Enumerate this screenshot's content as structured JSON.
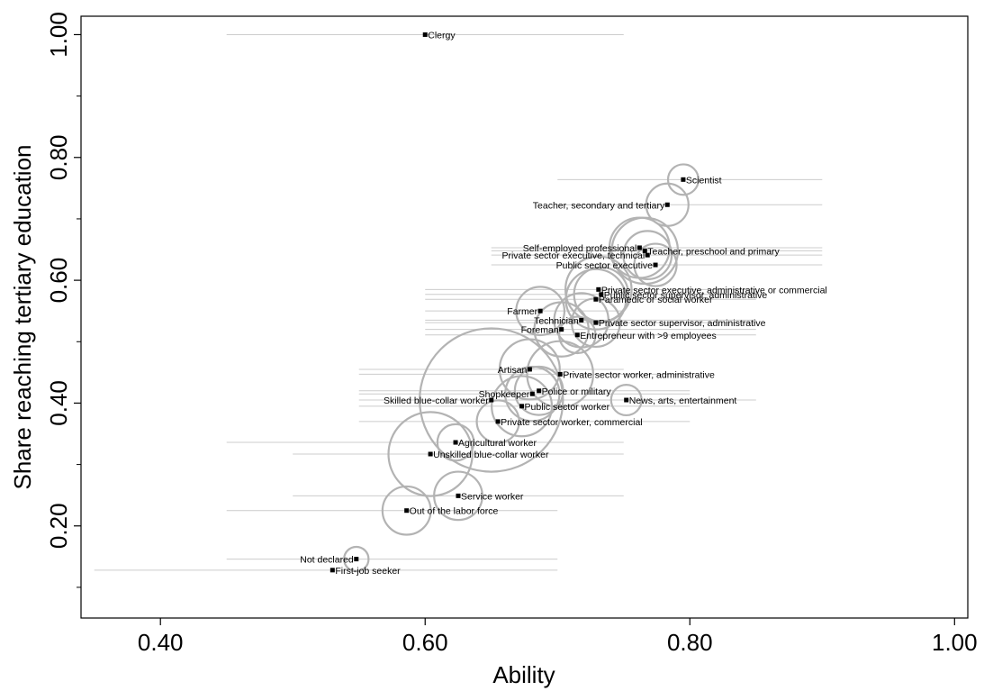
{
  "chart_data": {
    "type": "scatter",
    "title": "",
    "xlabel": "Ability",
    "ylabel": "Share reaching tertiary education",
    "xlim": [
      0.34,
      1.01
    ],
    "ylim": [
      0.05,
      1.03
    ],
    "x_ticks": [
      0.4,
      0.6,
      0.8,
      1.0
    ],
    "x_tick_labels": [
      "0.40",
      "0.60",
      "0.80",
      "1.00"
    ],
    "y_ticks": [
      0.2,
      0.4,
      0.6,
      0.8,
      1.0
    ],
    "y_tick_labels": [
      "0.20",
      "0.40",
      "0.60",
      "0.80",
      "1.00"
    ],
    "y_minor_ticks": [
      0.1,
      0.3,
      0.5,
      0.7,
      0.9
    ],
    "grid": false,
    "legend": "none",
    "colors": {
      "point": "#000000",
      "bubble": "#b3b3b3",
      "range_line": "#cccccc"
    },
    "points": [
      {
        "label": "Clergy",
        "x": 0.6,
        "y": 1.0,
        "range": [
          0.45,
          0.75
        ],
        "size": 0.0
      },
      {
        "label": "Scientist",
        "x": 0.795,
        "y": 0.764,
        "range": [
          0.7,
          0.9
        ],
        "size": 0.3
      },
      {
        "label": "Teacher, secondary and tertiary",
        "x": 0.783,
        "y": 0.723,
        "range": [
          0.7,
          0.9
        ],
        "size": 0.5
      },
      {
        "label": "Self-employed professional",
        "x": 0.762,
        "y": 0.653,
        "range": [
          0.65,
          0.9
        ],
        "size": 0.8
      },
      {
        "label": "Teacher, preschool and primary",
        "x": 0.766,
        "y": 0.648,
        "range": [
          0.65,
          0.9
        ],
        "size": 0.9
      },
      {
        "label": "Private sector executive, technical",
        "x": 0.768,
        "y": 0.641,
        "range": [
          0.65,
          0.9
        ],
        "size": 0.6
      },
      {
        "label": "Public sector executive",
        "x": 0.774,
        "y": 0.625,
        "range": [
          0.65,
          0.9
        ],
        "size": 0.5
      },
      {
        "label": "Private sector executive, administrative or commercial",
        "x": 0.731,
        "y": 0.585,
        "range": [
          0.6,
          0.85
        ],
        "size": 0.9
      },
      {
        "label": "Public sector supervisor, administrative",
        "x": 0.733,
        "y": 0.577,
        "range": [
          0.6,
          0.85
        ],
        "size": 0.7
      },
      {
        "label": "Paramedic or social worker",
        "x": 0.729,
        "y": 0.569,
        "range": [
          0.6,
          0.85
        ],
        "size": 0.8
      },
      {
        "label": "Farmer",
        "x": 0.687,
        "y": 0.55,
        "range": [
          0.6,
          0.75
        ],
        "size": 0.6
      },
      {
        "label": "Technician",
        "x": 0.718,
        "y": 0.535,
        "range": [
          0.6,
          0.85
        ],
        "size": 0.7
      },
      {
        "label": "Private sector supervisor, administrative",
        "x": 0.729,
        "y": 0.531,
        "range": [
          0.6,
          0.85
        ],
        "size": 0.6
      },
      {
        "label": "Foreman",
        "x": 0.703,
        "y": 0.52,
        "range": [
          0.6,
          0.85
        ],
        "size": 0.7
      },
      {
        "label": "Entrepreneur with >9 employees",
        "x": 0.715,
        "y": 0.511,
        "range": [
          0.6,
          0.85
        ],
        "size": 0.4
      },
      {
        "label": "Artisan",
        "x": 0.679,
        "y": 0.455,
        "range": [
          0.55,
          0.75
        ],
        "size": 0.8
      },
      {
        "label": "Private sector worker, administrative",
        "x": 0.702,
        "y": 0.447,
        "range": [
          0.55,
          0.8
        ],
        "size": 0.9
      },
      {
        "label": "Shopkeeper",
        "x": 0.681,
        "y": 0.415,
        "range": [
          0.55,
          0.8
        ],
        "size": 0.7
      },
      {
        "label": "Police or military",
        "x": 0.686,
        "y": 0.42,
        "range": [
          0.55,
          0.8
        ],
        "size": 0.6
      },
      {
        "label": "News, arts, entertainment",
        "x": 0.752,
        "y": 0.405,
        "range": [
          0.65,
          0.85
        ],
        "size": 0.3
      },
      {
        "label": "Skilled blue-collar worker",
        "x": 0.65,
        "y": 0.405,
        "range": [
          0.55,
          0.8
        ],
        "size": 2.2
      },
      {
        "label": "Public sector worker",
        "x": 0.673,
        "y": 0.395,
        "range": [
          0.55,
          0.8
        ],
        "size": 0.8
      },
      {
        "label": "Private sector worker, commercial",
        "x": 0.655,
        "y": 0.37,
        "range": [
          0.55,
          0.8
        ],
        "size": 0.5
      },
      {
        "label": "Agricultural worker",
        "x": 0.623,
        "y": 0.336,
        "range": [
          0.45,
          0.75
        ],
        "size": 0.4
      },
      {
        "label": "Unskilled blue-collar worker",
        "x": 0.604,
        "y": 0.317,
        "range": [
          0.5,
          0.75
        ],
        "size": 1.2
      },
      {
        "label": "Service worker",
        "x": 0.625,
        "y": 0.249,
        "range": [
          0.5,
          0.75
        ],
        "size": 0.6
      },
      {
        "label": "Out of the labor force",
        "x": 0.586,
        "y": 0.225,
        "range": [
          0.45,
          0.7
        ],
        "size": 0.6
      },
      {
        "label": "Not declared",
        "x": 0.548,
        "y": 0.146,
        "range": [
          0.45,
          0.7
        ],
        "size": 0.2
      },
      {
        "label": "First-job seeker",
        "x": 0.53,
        "y": 0.128,
        "range": [
          0.35,
          0.7
        ],
        "size": 0.0
      }
    ]
  }
}
